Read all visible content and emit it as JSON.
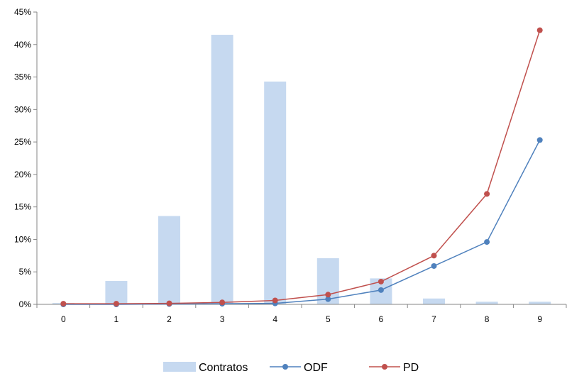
{
  "chart_data": {
    "type": "bar",
    "categories": [
      "0",
      "1",
      "2",
      "3",
      "4",
      "5",
      "6",
      "7",
      "8",
      "9"
    ],
    "series": [
      {
        "name": "Contratos",
        "type": "bar",
        "color": "#c6d9f0",
        "values": [
          0.2,
          3.6,
          13.6,
          41.5,
          34.3,
          7.1,
          4.0,
          0.9,
          0.4,
          0.4
        ]
      },
      {
        "name": "ODF",
        "type": "line",
        "color": "#4f81bd",
        "values": [
          0.0,
          0.0,
          0.05,
          0.1,
          0.15,
          0.8,
          2.2,
          5.9,
          9.6,
          25.3
        ]
      },
      {
        "name": "PD",
        "type": "line",
        "color": "#c0504d",
        "values": [
          0.1,
          0.1,
          0.15,
          0.3,
          0.6,
          1.5,
          3.5,
          7.5,
          17.0,
          42.2
        ]
      }
    ],
    "y_tick_labels": [
      "0%",
      "5%",
      "10%",
      "15%",
      "20%",
      "25%",
      "30%",
      "35%",
      "40%",
      "45%"
    ],
    "ylim": [
      0,
      45
    ],
    "y_unit": "%",
    "grid": false,
    "legend_position": "bottom"
  }
}
